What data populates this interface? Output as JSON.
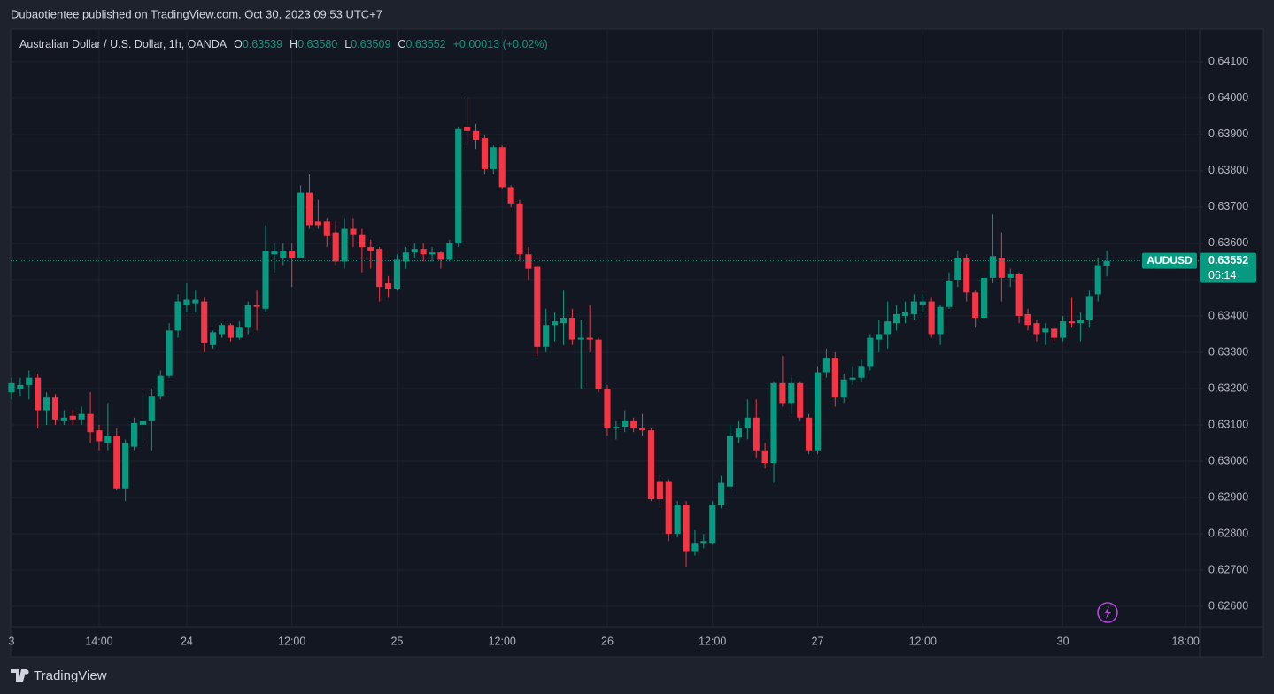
{
  "page": {
    "publisher": "Dubaotientee published on TradingView.com, Oct 30, 2023 09:53 UTC+7",
    "brand": "TradingView"
  },
  "chart_data": {
    "type": "candlestick",
    "legend": {
      "symbol": "Australian Dollar / U.S. Dollar, 1h, OANDA",
      "o_label": "O",
      "o": "0.63539",
      "h_label": "H",
      "h": "0.63580",
      "l_label": "L",
      "l": "0.63509",
      "c_label": "C",
      "c": "0.63552",
      "change": "+0.00013 (+0.02%)"
    },
    "price_tag": {
      "name": "AUDUSD",
      "price": "0.63552",
      "countdown": "06:14"
    },
    "up_color": "#089981",
    "down_color": "#f23645",
    "grid": true,
    "xlim": [
      -0.1,
      135.6
    ],
    "xticks": [
      {
        "value": 0,
        "label": "3"
      },
      {
        "value": 10,
        "label": "14:00"
      },
      {
        "value": 20,
        "label": "24"
      },
      {
        "value": 32,
        "label": "12:00"
      },
      {
        "value": 44,
        "label": "25"
      },
      {
        "value": 56,
        "label": "12:00"
      },
      {
        "value": 68,
        "label": "26"
      },
      {
        "value": 80,
        "label": "12:00"
      },
      {
        "value": 92,
        "label": "27"
      },
      {
        "value": 104,
        "label": "12:00"
      },
      {
        "value": 120,
        "label": "30"
      },
      {
        "value": 134,
        "label": "18:00"
      }
    ],
    "ylim": [
      0.62544,
      0.6419
    ],
    "yticks": [
      {
        "value": 0.641,
        "label": "0.64100"
      },
      {
        "value": 0.64,
        "label": "0.64000"
      },
      {
        "value": 0.639,
        "label": "0.63900"
      },
      {
        "value": 0.638,
        "label": "0.63800"
      },
      {
        "value": 0.637,
        "label": "0.63700"
      },
      {
        "value": 0.636,
        "label": "0.63600"
      },
      {
        "value": 0.635,
        "label": "0.63500"
      },
      {
        "value": 0.634,
        "label": "0.63400"
      },
      {
        "value": 0.633,
        "label": "0.63300"
      },
      {
        "value": 0.632,
        "label": "0.63200"
      },
      {
        "value": 0.631,
        "label": "0.63100"
      },
      {
        "value": 0.63,
        "label": "0.63000"
      },
      {
        "value": 0.629,
        "label": "0.62900"
      },
      {
        "value": 0.628,
        "label": "0.62800"
      },
      {
        "value": 0.627,
        "label": "0.62700"
      },
      {
        "value": 0.626,
        "label": "0.62600"
      }
    ],
    "open": [
      0.6319,
      0.632,
      0.6321,
      0.6323,
      0.6314,
      0.63175,
      0.6311,
      0.63125,
      0.63115,
      0.6313,
      0.63085,
      0.6305,
      0.6307,
      0.62925,
      0.6304,
      0.631,
      0.6311,
      0.6318,
      0.63235,
      0.6336,
      0.6343,
      0.63435,
      0.6344,
      0.6332,
      0.6335,
      0.63375,
      0.6334,
      0.6337,
      0.6343,
      0.6342,
      0.6357,
      0.6356,
      0.6358,
      0.6356,
      0.6374,
      0.6366,
      0.6366,
      0.6363,
      0.6355,
      0.6364,
      0.63625,
      0.6359,
      0.63585,
      0.6349,
      0.63475,
      0.6355,
      0.63575,
      0.63585,
      0.6357,
      0.63575,
      0.63555,
      0.636,
      0.6392,
      0.6391,
      0.6389,
      0.63805,
      0.63865,
      0.63755,
      0.6371,
      0.6357,
      0.63535,
      0.63315,
      0.63375,
      0.6338,
      0.63395,
      0.63335,
      0.6334,
      0.63335,
      0.632,
      0.6309,
      0.63095,
      0.6311,
      0.6309,
      0.63085,
      0.62945,
      0.62945,
      0.628,
      0.6288,
      0.6275,
      0.62775,
      0.62775,
      0.6288,
      0.6293,
      0.63065,
      0.6309,
      0.6312,
      0.6303,
      0.62995,
      0.63215,
      0.6316,
      0.63215,
      0.6312,
      0.6303,
      0.63245,
      0.63285,
      0.63175,
      0.63225,
      0.6323,
      0.6326,
      0.63335,
      0.6335,
      0.6338,
      0.634,
      0.63405,
      0.6343,
      0.6344,
      0.6335,
      0.63425,
      0.635,
      0.6356,
      0.63465,
      0.63395,
      0.63505,
      0.6356,
      0.63505,
      0.63515,
      0.63405,
      0.6338,
      0.63355,
      0.63365,
      0.6334,
      0.63385,
      0.6338,
      0.6339,
      0.6346,
      0.63539
    ],
    "high": [
      0.6323,
      0.6323,
      0.6325,
      0.6324,
      0.6319,
      0.63185,
      0.6314,
      0.6314,
      0.6315,
      0.6319,
      0.631,
      0.6316,
      0.6309,
      0.6306,
      0.6312,
      0.6319,
      0.632,
      0.6325,
      0.6338,
      0.6346,
      0.6349,
      0.6347,
      0.6345,
      0.6336,
      0.6338,
      0.6338,
      0.63385,
      0.6344,
      0.6347,
      0.6365,
      0.636,
      0.636,
      0.636,
      0.6376,
      0.6379,
      0.6372,
      0.6367,
      0.6366,
      0.6367,
      0.6367,
      0.6364,
      0.6361,
      0.6359,
      0.6351,
      0.6357,
      0.6359,
      0.636,
      0.636,
      0.6359,
      0.6358,
      0.6361,
      0.6392,
      0.64,
      0.6393,
      0.639,
      0.6387,
      0.6387,
      0.6376,
      0.6372,
      0.6359,
      0.6354,
      0.6342,
      0.6341,
      0.6347,
      0.6342,
      0.6339,
      0.6343,
      0.6334,
      0.6321,
      0.6311,
      0.6314,
      0.6312,
      0.6313,
      0.6309,
      0.6296,
      0.6295,
      0.6289,
      0.6289,
      0.6281,
      0.628,
      0.6289,
      0.6296,
      0.631,
      0.6311,
      0.6317,
      0.6317,
      0.6305,
      0.6322,
      0.6329,
      0.6323,
      0.6322,
      0.6313,
      0.6326,
      0.6331,
      0.633,
      0.6324,
      0.6326,
      0.6328,
      0.6335,
      0.6339,
      0.6344,
      0.6343,
      0.6344,
      0.6346,
      0.6346,
      0.6345,
      0.6343,
      0.6352,
      0.6358,
      0.6357,
      0.6347,
      0.6351,
      0.6368,
      0.6363,
      0.6353,
      0.6352,
      0.6342,
      0.6339,
      0.6338,
      0.6337,
      0.634,
      0.6345,
      0.6341,
      0.6347,
      0.6356,
      0.6358
    ],
    "low": [
      0.6317,
      0.6318,
      0.6317,
      0.6309,
      0.631,
      0.631,
      0.631,
      0.631,
      0.631,
      0.6305,
      0.6303,
      0.6303,
      0.6292,
      0.6289,
      0.6303,
      0.6305,
      0.6303,
      0.6317,
      0.6323,
      0.6334,
      0.6341,
      0.6341,
      0.633,
      0.6331,
      0.6334,
      0.6333,
      0.63335,
      0.6335,
      0.6336,
      0.6341,
      0.6352,
      0.6354,
      0.6348,
      0.6356,
      0.6364,
      0.6364,
      0.6359,
      0.6354,
      0.6353,
      0.6359,
      0.6352,
      0.6353,
      0.6344,
      0.6345,
      0.6347,
      0.6353,
      0.6356,
      0.6355,
      0.6355,
      0.6353,
      0.6355,
      0.6359,
      0.6387,
      0.6386,
      0.6379,
      0.6379,
      0.6375,
      0.637,
      0.6355,
      0.635,
      0.6329,
      0.633,
      0.6333,
      0.6332,
      0.6332,
      0.632,
      0.633,
      0.6319,
      0.6307,
      0.6306,
      0.6308,
      0.6308,
      0.6307,
      0.6289,
      0.6288,
      0.6278,
      0.6279,
      0.6271,
      0.6274,
      0.6276,
      0.6277,
      0.6287,
      0.6292,
      0.6305,
      0.6306,
      0.6301,
      0.6298,
      0.6294,
      0.6315,
      0.6313,
      0.6311,
      0.6302,
      0.6302,
      0.6323,
      0.6315,
      0.6316,
      0.6321,
      0.6322,
      0.6325,
      0.633,
      0.6331,
      0.6336,
      0.6338,
      0.6339,
      0.6341,
      0.6334,
      0.6332,
      0.6342,
      0.6348,
      0.6344,
      0.6337,
      0.6339,
      0.6349,
      0.6344,
      0.6348,
      0.6338,
      0.6336,
      0.6333,
      0.6332,
      0.6333,
      0.6333,
      0.6337,
      0.6333,
      0.6337,
      0.6344,
      0.63509
    ],
    "close": [
      0.63215,
      0.6321,
      0.6323,
      0.6314,
      0.63175,
      0.63115,
      0.6312,
      0.63115,
      0.6313,
      0.6308,
      0.63055,
      0.6307,
      0.62925,
      0.6305,
      0.63105,
      0.6311,
      0.6318,
      0.63235,
      0.6336,
      0.6344,
      0.63445,
      0.63445,
      0.63325,
      0.63355,
      0.63375,
      0.6334,
      0.6337,
      0.6343,
      0.63425,
      0.6358,
      0.6358,
      0.6358,
      0.6356,
      0.6374,
      0.6365,
      0.6365,
      0.6362,
      0.6355,
      0.6364,
      0.63625,
      0.6359,
      0.6358,
      0.6348,
      0.63475,
      0.63555,
      0.63575,
      0.63585,
      0.6357,
      0.63575,
      0.63555,
      0.636,
      0.63915,
      0.6391,
      0.63885,
      0.63805,
      0.63865,
      0.63755,
      0.6371,
      0.6357,
      0.6353,
      0.63315,
      0.63375,
      0.63385,
      0.63395,
      0.63335,
      0.6334,
      0.63335,
      0.632,
      0.6309,
      0.63095,
      0.6311,
      0.6309,
      0.63085,
      0.62895,
      0.62895,
      0.628,
      0.6288,
      0.6275,
      0.62775,
      0.6278,
      0.6288,
      0.6294,
      0.6307,
      0.6309,
      0.6312,
      0.6303,
      0.62995,
      0.63215,
      0.6316,
      0.63215,
      0.6312,
      0.6303,
      0.63245,
      0.63285,
      0.63175,
      0.63225,
      0.6323,
      0.6326,
      0.6334,
      0.6335,
      0.63385,
      0.63405,
      0.6341,
      0.6344,
      0.6344,
      0.6335,
      0.63425,
      0.63495,
      0.6356,
      0.63465,
      0.63395,
      0.63505,
      0.63565,
      0.63505,
      0.63515,
      0.634,
      0.63375,
      0.6335,
      0.63365,
      0.6334,
      0.63385,
      0.6338,
      0.6339,
      0.63455,
      0.6354,
      0.63552
    ]
  }
}
